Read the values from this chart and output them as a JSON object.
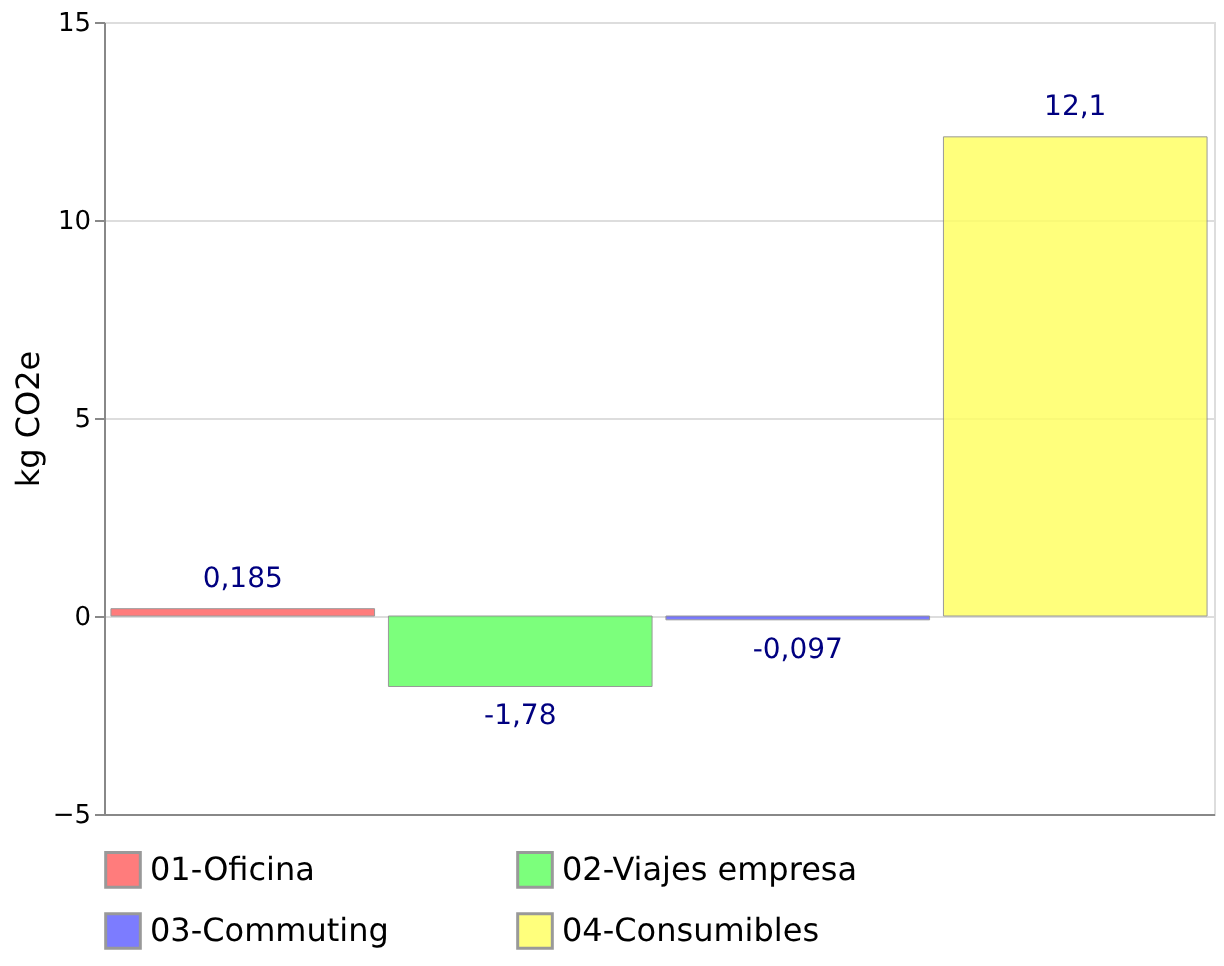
{
  "chart_data": {
    "type": "bar",
    "ylabel": "kg CO2e",
    "categories": [
      null,
      null,
      null,
      null
    ],
    "series": [
      {
        "name": "01-Oficina",
        "color": "#ff6666",
        "values": [
          0.185,
          null,
          null,
          null
        ],
        "value_labels": [
          "0,185",
          null,
          null,
          null
        ]
      },
      {
        "name": "02-Viajes empresa",
        "color": "#66ff66",
        "values": [
          null,
          -1.78,
          null,
          null
        ],
        "value_labels": [
          null,
          "-1,78",
          null,
          null
        ]
      },
      {
        "name": "03-Commuting",
        "color": "#6666ff",
        "values": [
          null,
          null,
          -0.097,
          null
        ],
        "value_labels": [
          null,
          null,
          "-0,097",
          null
        ]
      },
      {
        "name": "04-Consumibles",
        "color": "#ffff66",
        "values": [
          null,
          null,
          null,
          12.1
        ],
        "value_labels": [
          null,
          null,
          null,
          "12,1"
        ]
      }
    ],
    "ylim": [
      -5,
      15
    ],
    "yticks": [
      -5,
      0,
      5,
      10,
      15
    ],
    "grid": "y",
    "legend": "bottom"
  }
}
